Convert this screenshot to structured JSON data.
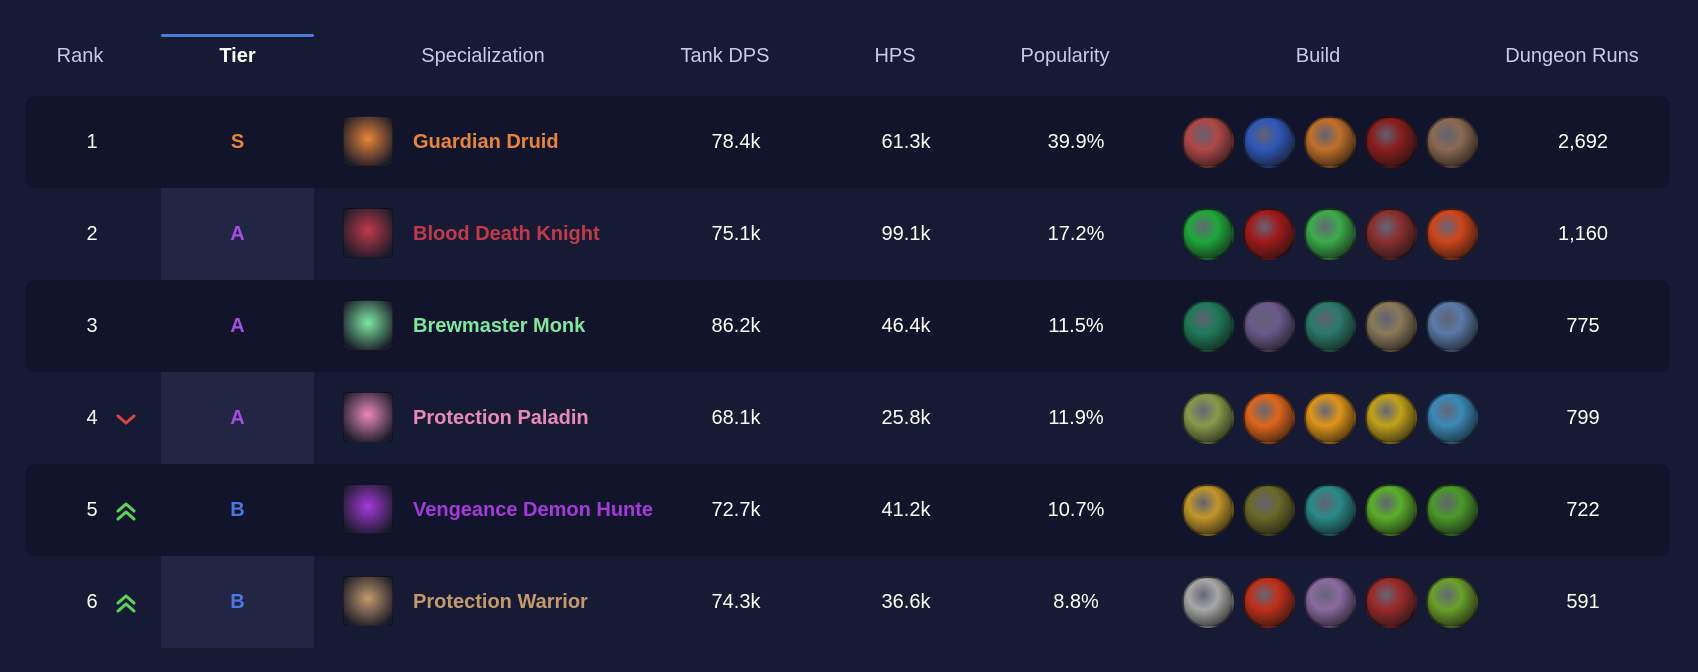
{
  "header": {
    "rank": "Rank",
    "tier": "Tier",
    "specialization": "Specialization",
    "tank_dps": "Tank DPS",
    "hps": "HPS",
    "popularity": "Popularity",
    "build": "Build",
    "dungeon_runs": "Dungeon Runs"
  },
  "active_sort_column": "tier",
  "colors": {
    "tier_S": "#e8853a",
    "tier_A": "#a44fe0",
    "tier_B": "#4a79e0",
    "trend_up": "#5ad35a",
    "trend_down": "#d9453f",
    "tier_underline": "#4c7bd9"
  },
  "rows": [
    {
      "rank": "1",
      "trend": "none",
      "tier": "S",
      "spec": "Guardian Druid",
      "spec_color": "#e8853a",
      "spec_icon": "bear-paw-icon",
      "tank_dps": "78.4k",
      "hps": "61.3k",
      "popularity": "39.9%",
      "runs": "2,692",
      "build": [
        "#b04848",
        "#2f58b8",
        "#c2702a",
        "#8a1e1e",
        "#8b6a52"
      ]
    },
    {
      "rank": "2",
      "trend": "none",
      "tier": "A",
      "spec": "Blood Death Knight",
      "spec_color": "#c03a4a",
      "spec_icon": "skull-icon",
      "tank_dps": "75.1k",
      "hps": "99.1k",
      "popularity": "17.2%",
      "runs": "1,160",
      "build": [
        "#1fa83b",
        "#a11a1a",
        "#3cad4a",
        "#8a2f2f",
        "#d0451c"
      ]
    },
    {
      "rank": "3",
      "trend": "none",
      "tier": "A",
      "spec": "Brewmaster Monk",
      "spec_color": "#7ee8a0",
      "spec_icon": "monk-icon",
      "tank_dps": "86.2k",
      "hps": "46.4k",
      "popularity": "11.5%",
      "runs": "775",
      "build": [
        "#1f7a5a",
        "#6a5a8a",
        "#2a7a6a",
        "#8a7a5a",
        "#5a7aa8"
      ]
    },
    {
      "rank": "4",
      "trend": "down",
      "tier": "A",
      "spec": "Protection Paladin",
      "spec_color": "#e88bb8",
      "spec_icon": "paladin-helm-icon",
      "tank_dps": "68.1k",
      "hps": "25.8k",
      "popularity": "11.9%",
      "runs": "799",
      "build": [
        "#8a9a4a",
        "#e0661a",
        "#e0951a",
        "#c2a21a",
        "#3a8ab8"
      ]
    },
    {
      "rank": "5",
      "trend": "up",
      "tier": "B",
      "spec": "Vengeance Demon Hunter",
      "spec_color": "#a33ad9",
      "spec_icon": "demon-hunter-icon",
      "tank_dps": "72.7k",
      "hps": "41.2k",
      "popularity": "10.7%",
      "runs": "722",
      "build": [
        "#c2962a",
        "#6a6a2a",
        "#2a8a8a",
        "#5ab02a",
        "#4a9a2a"
      ]
    },
    {
      "rank": "6",
      "trend": "up",
      "tier": "B",
      "spec": "Protection Warrior",
      "spec_color": "#c49a6c",
      "spec_icon": "warrior-shield-icon",
      "tank_dps": "74.3k",
      "hps": "36.6k",
      "popularity": "8.8%",
      "runs": "591",
      "build": [
        "#a8a8a8",
        "#c0301a",
        "#8a6aa0",
        "#9a2a2a",
        "#6aa02a"
      ]
    }
  ]
}
